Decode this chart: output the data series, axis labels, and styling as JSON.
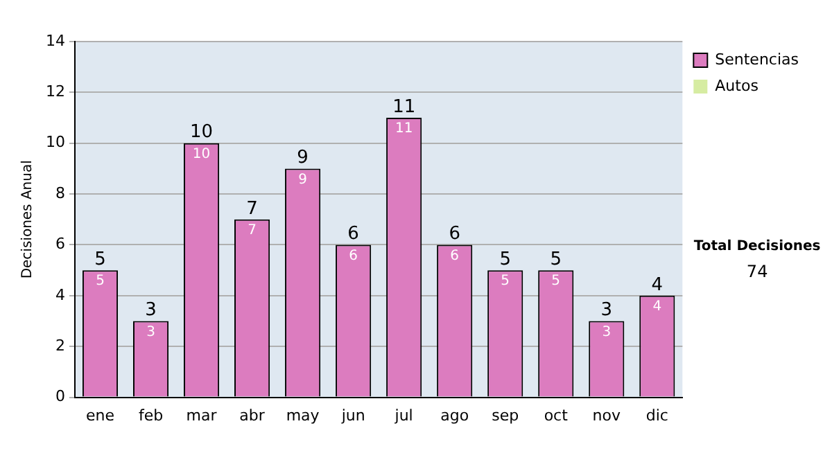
{
  "chart_data": {
    "type": "bar",
    "ylabel": "Decisiones Anual",
    "categories": [
      "ene",
      "feb",
      "mar",
      "abr",
      "may",
      "jun",
      "jul",
      "ago",
      "sep",
      "oct",
      "nov",
      "dic"
    ],
    "series": [
      {
        "name": "Sentencias",
        "color": "#dc7cbf",
        "values": [
          5,
          3,
          10,
          7,
          9,
          6,
          11,
          6,
          5,
          5,
          3,
          4
        ],
        "value_labels": [
          "5",
          "3",
          "10",
          "7",
          "9",
          "6",
          "11",
          "6",
          "5",
          "5",
          "3",
          "4"
        ]
      },
      {
        "name": "Autos",
        "color": "#d6eca2",
        "values": [
          0,
          0,
          0,
          0,
          0,
          0,
          0,
          0,
          0,
          0,
          0,
          0
        ]
      }
    ],
    "stacked": true,
    "totals": [
      "5",
      "3",
      "10",
      "7",
      "9",
      "6",
      "11",
      "6",
      "5",
      "5",
      "3",
      "4"
    ],
    "ylim": [
      0,
      14
    ],
    "yticks": [
      0,
      2,
      4,
      6,
      8,
      10,
      12,
      14
    ],
    "grid": "y",
    "legend": "top right",
    "annotations": [
      "Total Decisiones",
      "74"
    ]
  }
}
